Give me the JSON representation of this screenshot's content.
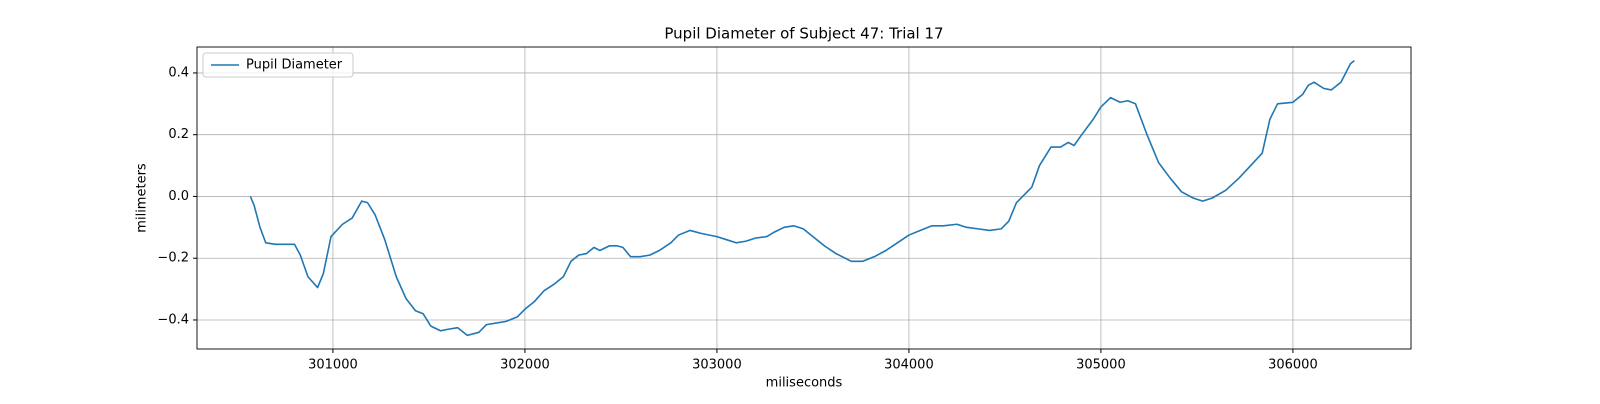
{
  "chart_data": {
    "type": "line",
    "title": "Pupil Diameter of Subject 47: Trial 17",
    "x_label": "miliseconds",
    "y_label": "milimeters",
    "x": [
      300570,
      300590,
      300620,
      300650,
      300700,
      300800,
      300830,
      300870,
      300920,
      300950,
      300990,
      301050,
      301100,
      301150,
      301180,
      301220,
      301270,
      301330,
      301380,
      301430,
      301470,
      301510,
      301560,
      301600,
      301650,
      301700,
      301760,
      301800,
      301850,
      301900,
      301960,
      302000,
      302050,
      302100,
      302150,
      302200,
      302240,
      302280,
      302320,
      302360,
      302390,
      302440,
      302480,
      302510,
      302550,
      302600,
      302650,
      302700,
      302760,
      302800,
      302860,
      302920,
      303000,
      303050,
      303100,
      303150,
      303200,
      303260,
      303300,
      303350,
      303400,
      303450,
      303500,
      303560,
      303620,
      303700,
      303760,
      303820,
      303880,
      303940,
      304000,
      304060,
      304120,
      304180,
      304250,
      304300,
      304360,
      304420,
      304480,
      304520,
      304560,
      304600,
      304640,
      304680,
      304740,
      304790,
      304830,
      304860,
      304900,
      304960,
      305000,
      305050,
      305100,
      305140,
      305180,
      305240,
      305300,
      305360,
      305420,
      305480,
      305530,
      305580,
      305650,
      305720,
      305780,
      305840,
      305880,
      305920,
      306000,
      306050,
      306080,
      306110,
      306160,
      306200,
      306250,
      306300,
      306320
    ],
    "series": [
      {
        "name": "Pupil Diameter",
        "color": "#1f77b4",
        "values": [
          0.0,
          -0.03,
          -0.1,
          -0.15,
          -0.155,
          -0.155,
          -0.19,
          -0.26,
          -0.295,
          -0.25,
          -0.13,
          -0.09,
          -0.07,
          -0.015,
          -0.02,
          -0.06,
          -0.14,
          -0.26,
          -0.33,
          -0.37,
          -0.38,
          -0.42,
          -0.435,
          -0.43,
          -0.425,
          -0.45,
          -0.44,
          -0.415,
          -0.41,
          -0.405,
          -0.39,
          -0.365,
          -0.34,
          -0.305,
          -0.285,
          -0.26,
          -0.21,
          -0.19,
          -0.185,
          -0.165,
          -0.175,
          -0.16,
          -0.16,
          -0.165,
          -0.195,
          -0.195,
          -0.19,
          -0.175,
          -0.15,
          -0.125,
          -0.11,
          -0.12,
          -0.13,
          -0.14,
          -0.15,
          -0.145,
          -0.135,
          -0.13,
          -0.115,
          -0.1,
          -0.095,
          -0.105,
          -0.13,
          -0.16,
          -0.185,
          -0.21,
          -0.21,
          -0.195,
          -0.175,
          -0.15,
          -0.125,
          -0.11,
          -0.095,
          -0.095,
          -0.09,
          -0.1,
          -0.105,
          -0.11,
          -0.105,
          -0.08,
          -0.02,
          0.005,
          0.03,
          0.1,
          0.16,
          0.16,
          0.175,
          0.165,
          0.2,
          0.25,
          0.29,
          0.32,
          0.305,
          0.31,
          0.3,
          0.2,
          0.11,
          0.06,
          0.015,
          -0.005,
          -0.015,
          -0.005,
          0.02,
          0.06,
          0.1,
          0.14,
          0.25,
          0.3,
          0.305,
          0.33,
          0.36,
          0.37,
          0.35,
          0.345,
          0.37,
          0.43,
          0.44
        ]
      }
    ],
    "xlim": [
      300292,
      306615
    ],
    "xticks": [
      301000,
      302000,
      303000,
      304000,
      305000,
      306000
    ],
    "ylim": [
      -0.494,
      0.484
    ],
    "yticks": [
      {
        "value": -0.4,
        "label": "−0.4"
      },
      {
        "value": -0.2,
        "label": "−0.2"
      },
      {
        "value": 0,
        "label": "0.0"
      },
      0.2,
      0.4
    ],
    "grid": true,
    "legend": "upper left"
  }
}
